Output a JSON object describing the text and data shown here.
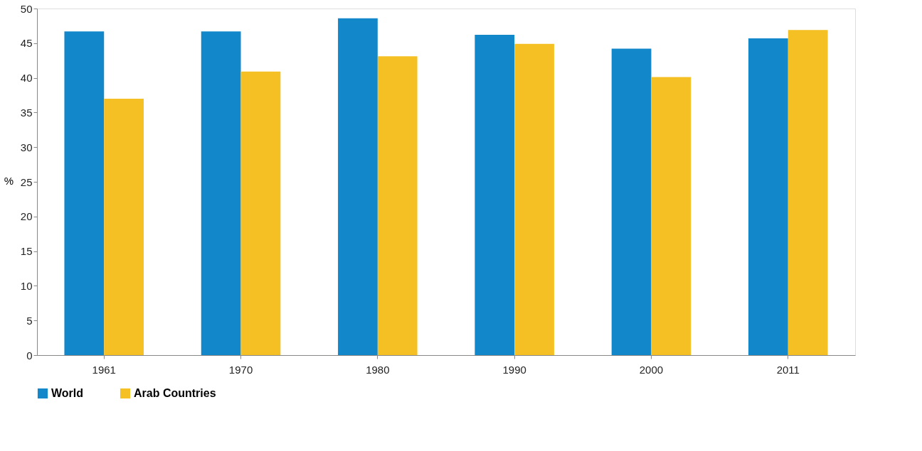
{
  "chart_data": {
    "type": "bar",
    "ylabel": "%",
    "categories": [
      "1961",
      "1970",
      "1980",
      "1990",
      "2000",
      "2011"
    ],
    "series": [
      {
        "name": "World",
        "color": "#1288cb",
        "values": [
          46.7,
          46.7,
          48.6,
          46.2,
          44.2,
          45.7
        ]
      },
      {
        "name": "Arab Countries",
        "color": "#f5c023",
        "values": [
          37.0,
          40.9,
          43.1,
          44.9,
          40.1,
          46.9
        ]
      }
    ],
    "ylim": [
      0,
      50
    ],
    "yticks": [
      0,
      5,
      10,
      15,
      20,
      25,
      30,
      35,
      40,
      45,
      50
    ],
    "grid": false,
    "legend": "bottom"
  }
}
